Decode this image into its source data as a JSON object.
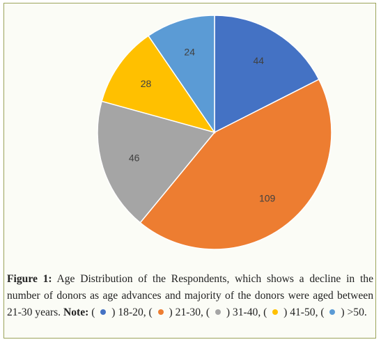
{
  "chart_data": {
    "type": "pie",
    "slices": [
      {
        "label": "18-20",
        "value": 44,
        "color": "#4472c4"
      },
      {
        "label": "21-30",
        "value": 109,
        "color": "#ed7d31"
      },
      {
        "label": "31-40",
        "value": 46,
        "color": "#a5a5a5"
      },
      {
        "label": "41-50",
        "value": 28,
        "color": "#ffc000"
      },
      {
        "label": ">50",
        "value": 24,
        "color": "#5b9bd5"
      }
    ],
    "start_angle_deg": 0,
    "direction": "clockwise",
    "data_labels": true
  },
  "caption": {
    "figure_label": "Figure 1:",
    "text": " Age Distribution of the Respondents, which shows a decline in the number of donors as age advances and majority of the donors were aged between 21-30 years. ",
    "note_label": "Note:",
    "legend": [
      {
        "label": "18-20",
        "sep": ",",
        "color": "#4472c4"
      },
      {
        "label": "21-30",
        "sep": ",",
        "color": "#ed7d31"
      },
      {
        "label": "31-40",
        "sep": ",",
        "color": "#a5a5a5"
      },
      {
        "label": "41-50",
        "sep": ",",
        "color": "#ffc000"
      },
      {
        "label": ">50",
        "sep": ".",
        "color": "#5b9bd5"
      }
    ]
  }
}
